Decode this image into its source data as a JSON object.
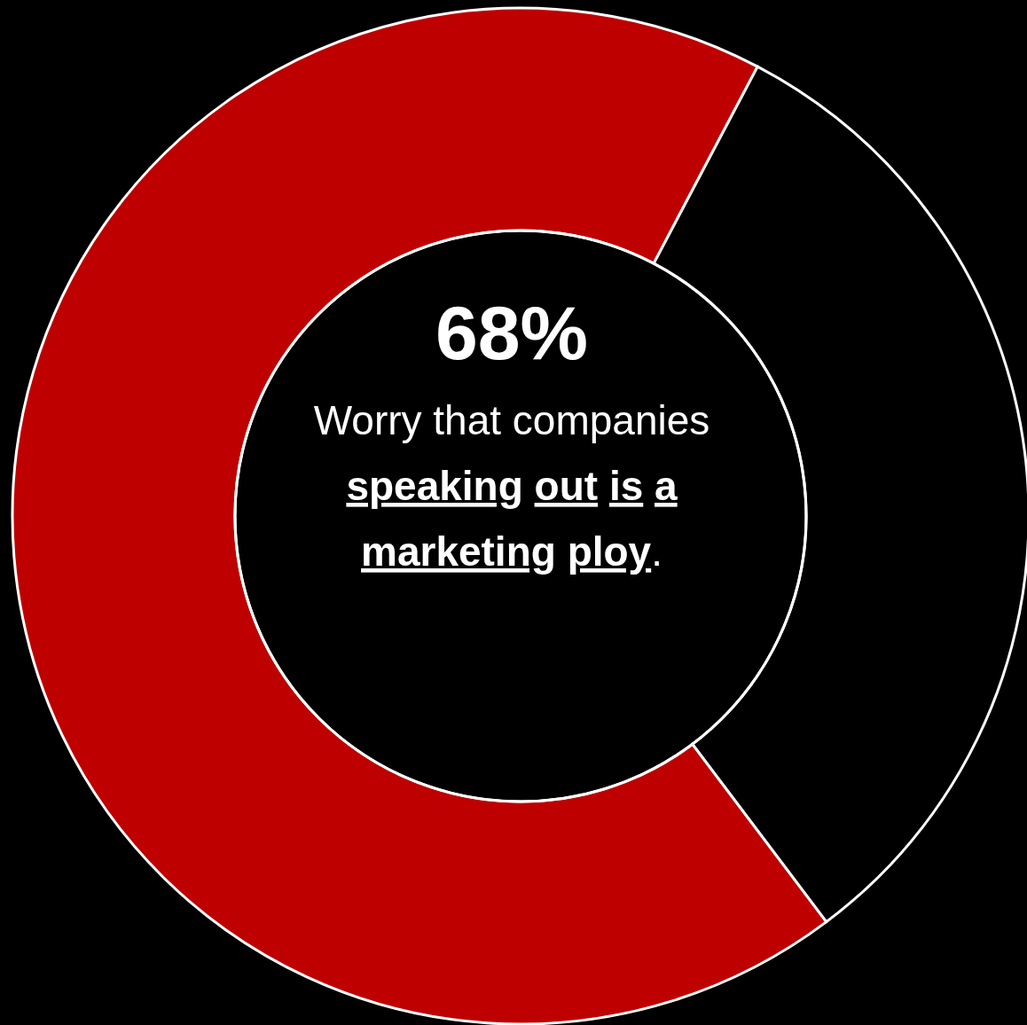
{
  "chart_data": {
    "type": "donut",
    "categories": [
      null,
      null
    ],
    "values": [
      68,
      32
    ],
    "colors": [
      "#be0000",
      "#000000"
    ],
    "value_labels": [
      "68%",
      null
    ],
    "annotations": [
      "Worry that companies",
      "speaking out is a marketing ploy",
      "."
    ]
  }
}
